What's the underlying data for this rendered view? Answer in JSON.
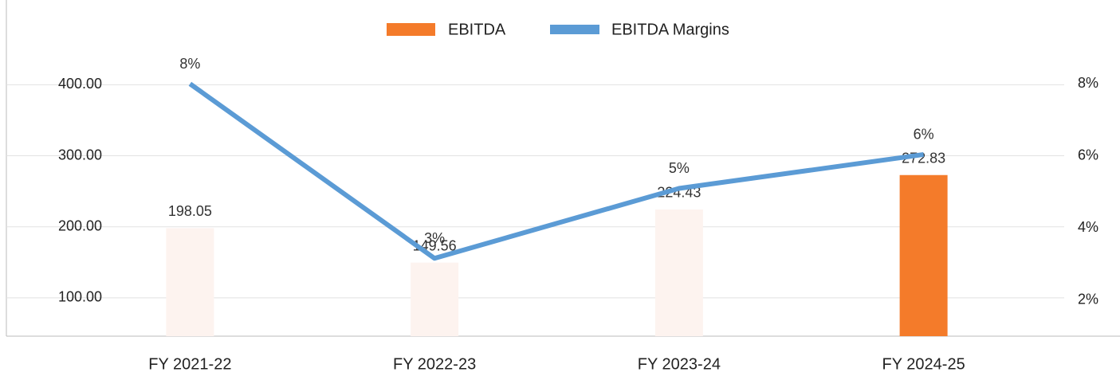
{
  "chart_data": {
    "type": "bar_line",
    "categories": [
      "FY 2021-22",
      "FY 2022-23",
      "FY 2023-24",
      "FY 2024-25"
    ],
    "series": [
      {
        "name": "EBITDA",
        "type": "bar",
        "color": "#f47b2a",
        "colors": [
          "#fdf3ef",
          "#fdf3ef",
          "#fdf3ef",
          "#f47b2a"
        ],
        "values": [
          198.05,
          149.56,
          224.43,
          272.83
        ]
      },
      {
        "name": "EBITDA Margins",
        "type": "line",
        "axis": "y2",
        "color": "#5b9bd5",
        "values": [
          8,
          3.16,
          5.1,
          6.04
        ],
        "value_labels": [
          "8%",
          "3%",
          "5%",
          "6%"
        ]
      }
    ],
    "ylim": [
      46,
      452
    ],
    "yticks": [
      {
        "value": 100,
        "label": "100.00"
      },
      {
        "value": 200,
        "label": "200.00"
      },
      {
        "value": 300,
        "label": "300.00"
      },
      {
        "value": 400,
        "label": "400.00"
      }
    ],
    "y2lim": [
      1,
      9
    ],
    "y2ticks": [
      {
        "value": 2,
        "label": "2%"
      },
      {
        "value": 4,
        "label": "4%"
      },
      {
        "value": 6,
        "label": "6%"
      },
      {
        "value": 8,
        "label": "8%"
      }
    ],
    "grid": true,
    "legend": "top"
  }
}
